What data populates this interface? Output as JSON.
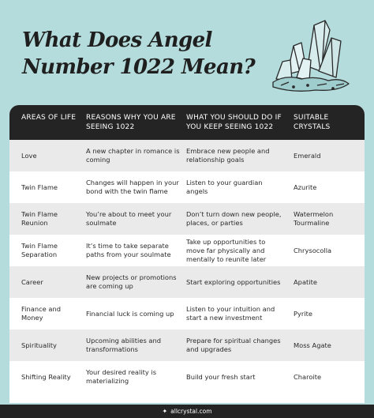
{
  "title": "What Does Angel Number 1022 Mean?",
  "table": {
    "headers": [
      "AREAS OF LIFE",
      "REASONS WHY YOU ARE SEEING 1022",
      "WHAT YOU SHOULD DO IF YOU KEEP SEEING 1022",
      "SUITABLE CRYSTALS"
    ],
    "rows": [
      [
        "Love",
        "A new chapter in romance is coming",
        "Embrace new people and relationship goals",
        "Emerald"
      ],
      [
        "Twin Flame",
        "Changes will happen in your bond with the twin flame",
        "Listen to your guardian angels",
        "Azurite"
      ],
      [
        "Twin Flame Reunion",
        "You’re about to meet your soulmate",
        "Don’t turn down new people, places, or parties",
        "Watermelon Tourmaline"
      ],
      [
        "Twin Flame Separation",
        "It’s time to take separate paths from your soulmate",
        "Take up opportunities to move far physically and mentally to reunite later",
        "Chrysocolla"
      ],
      [
        "Career",
        "New projects or promotions are coming up",
        "Start exploring opportunities",
        "Apatite"
      ],
      [
        "Finance and Money",
        "Financial luck is coming up",
        "Listen to your intuition and start a new investment",
        "Pyrite"
      ],
      [
        "Spirituality",
        "Upcoming abilities and transformations",
        "Prepare for spiritual changes and upgrades",
        "Moss Agate"
      ],
      [
        "Shifting Reality",
        "Your desired reality is materializing",
        "Build your fresh start",
        "Charoite"
      ]
    ]
  },
  "footer": {
    "site": "allcrystal.com",
    "logo_icon": "crystal-logo-icon"
  },
  "colors": {
    "background": "#b4dcdc",
    "header_row": "#242424",
    "alt_row": "#eaeaea"
  }
}
